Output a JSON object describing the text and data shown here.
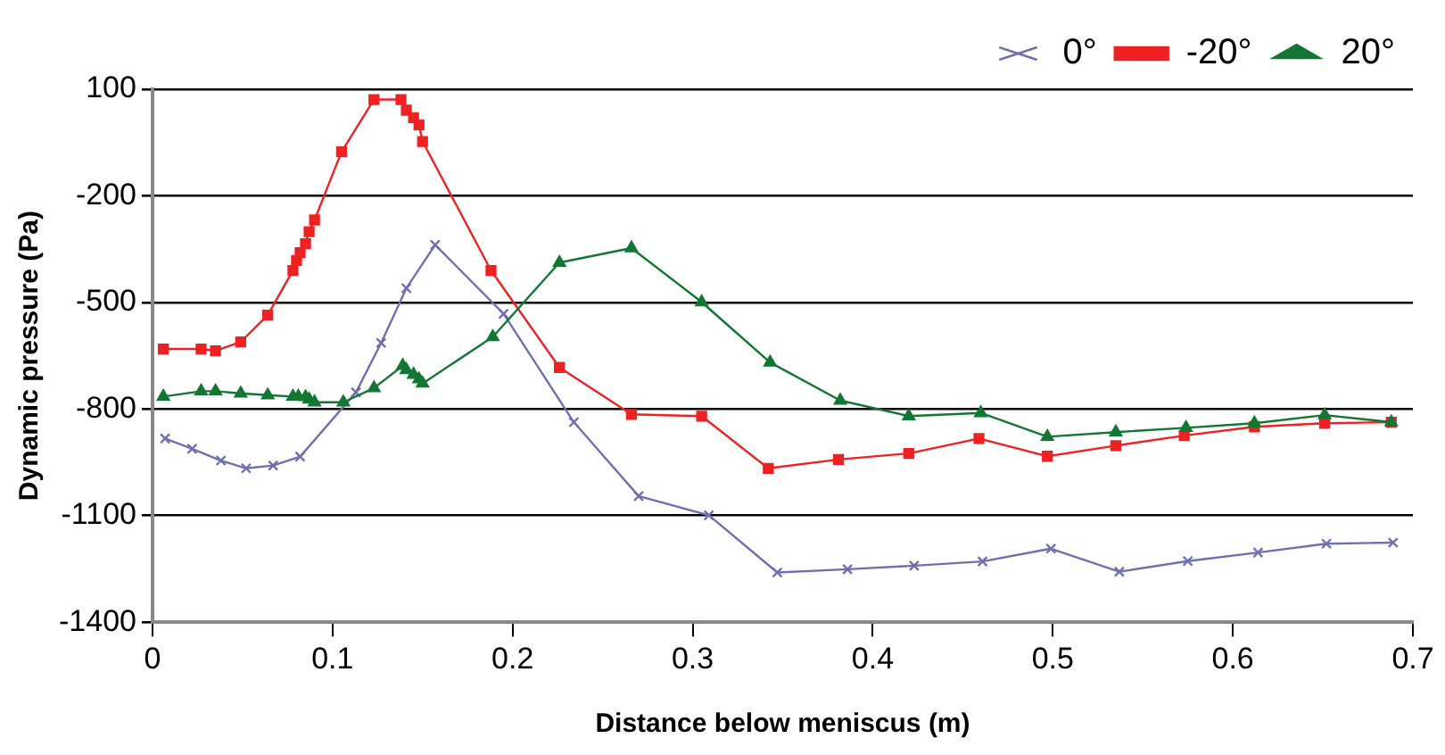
{
  "chart_data": {
    "type": "line",
    "xlabel": "Distance below meniscus (m)",
    "ylabel": "Dynamic pressure (Pa)",
    "xlim": [
      0,
      0.7
    ],
    "xticks": [
      0,
      0.1,
      0.2,
      0.3,
      0.4,
      0.5,
      0.6,
      0.7
    ],
    "ylim": [
      -1400,
      100
    ],
    "yticks": [
      -1400,
      -1100,
      -800,
      -500,
      -200,
      100
    ],
    "grid": "y",
    "legend": "top right",
    "series": [
      {
        "name": "0°",
        "color": "#7070b0",
        "marker": "cross",
        "x": [
          0.007,
          0.022,
          0.038,
          0.052,
          0.067,
          0.082,
          0.113,
          0.127,
          0.141,
          0.157,
          0.195,
          0.234,
          0.27,
          0.309,
          0.347,
          0.386,
          0.423,
          0.461,
          0.499,
          0.537,
          0.575,
          0.614,
          0.652,
          0.689
        ],
        "values": [
          -883,
          -912,
          -945,
          -967,
          -959,
          -934,
          -753,
          -614,
          -460,
          -338,
          -532,
          -837,
          -1045,
          -1099,
          -1260,
          -1251,
          -1241,
          -1229,
          -1193,
          -1258,
          -1228,
          -1204,
          -1179,
          -1176
        ]
      },
      {
        "name": "-20°",
        "color": "#ee2222",
        "marker": "square",
        "x": [
          0.006,
          0.027,
          0.035,
          0.049,
          0.064,
          0.078,
          0.08,
          0.082,
          0.085,
          0.087,
          0.09,
          0.105,
          0.123,
          0.138,
          0.141,
          0.145,
          0.148,
          0.15,
          0.188,
          0.226,
          0.266,
          0.305,
          0.342,
          0.381,
          0.42,
          0.459,
          0.497,
          0.535,
          0.573,
          0.612,
          0.651,
          0.688
        ],
        "values": [
          -631,
          -631,
          -636,
          -611,
          -536,
          -410,
          -382,
          -360,
          -335,
          -301,
          -268,
          -76,
          71,
          71,
          41,
          20,
          0,
          -47,
          -410,
          -683,
          -815,
          -820,
          -967,
          -942,
          -925,
          -883,
          -933,
          -903,
          -875,
          -850,
          -840,
          -837
        ]
      },
      {
        "name": "20°",
        "color": "#117733",
        "marker": "triangle",
        "x": [
          0.006,
          0.027,
          0.035,
          0.049,
          0.064,
          0.078,
          0.081,
          0.085,
          0.087,
          0.09,
          0.106,
          0.123,
          0.139,
          0.141,
          0.145,
          0.148,
          0.15,
          0.189,
          0.226,
          0.266,
          0.305,
          0.343,
          0.382,
          0.42,
          0.46,
          0.497,
          0.535,
          0.574,
          0.612,
          0.651,
          0.688
        ],
        "values": [
          -765,
          -750,
          -750,
          -756,
          -761,
          -765,
          -765,
          -766,
          -773,
          -781,
          -781,
          -741,
          -678,
          -690,
          -703,
          -716,
          -728,
          -597,
          -388,
          -347,
          -499,
          -669,
          -776,
          -820,
          -811,
          -878,
          -865,
          -853,
          -840,
          -817,
          -837
        ]
      }
    ]
  }
}
